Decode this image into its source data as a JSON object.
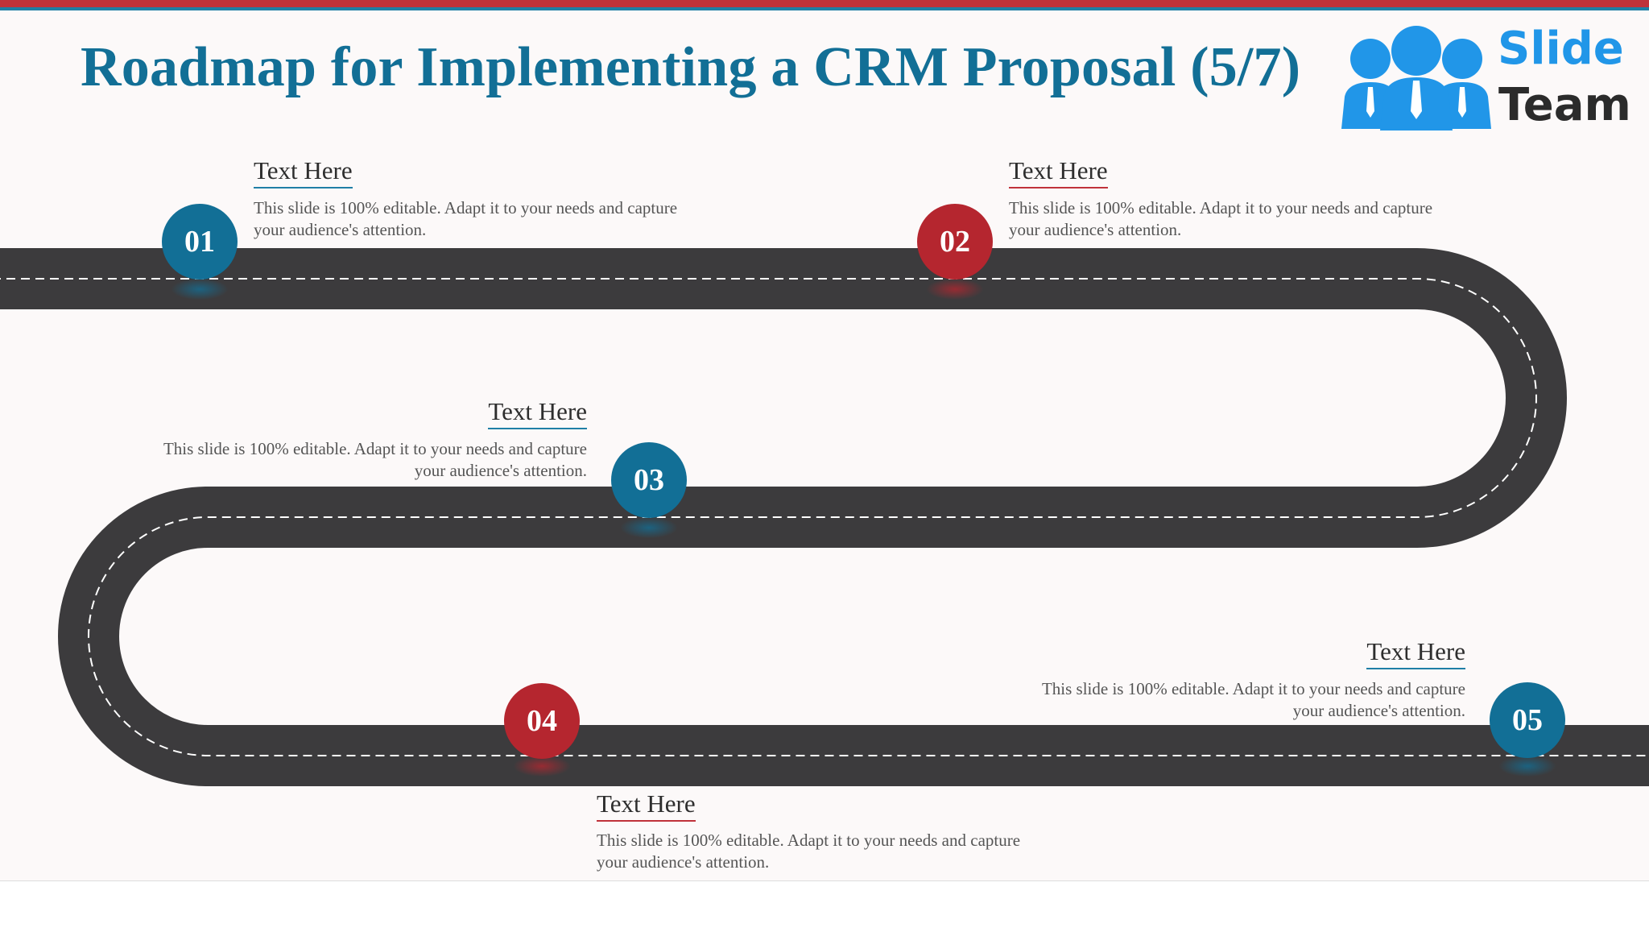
{
  "title": "Roadmap for Implementing a CRM Proposal (5/7)",
  "logo": {
    "line1": "Slide",
    "line2": "Team"
  },
  "colors": {
    "blue": "#126f96",
    "red": "#b5262f",
    "road": "#3c3b3d",
    "title": "#126f96"
  },
  "steps": [
    {
      "number": "01",
      "color": "blue",
      "heading": "Text Here",
      "text": "This slide is 100% editable. Adapt it to your needs and capture your audience's attention."
    },
    {
      "number": "02",
      "color": "red",
      "heading": "Text Here",
      "text": "This slide is 100% editable. Adapt it to your needs and capture your audience's attention."
    },
    {
      "number": "03",
      "color": "blue",
      "heading": "Text Here",
      "text": "This slide is 100% editable. Adapt it to your needs and capture your audience's attention."
    },
    {
      "number": "04",
      "color": "red",
      "heading": "Text Here",
      "text": "This slide is 100% editable. Adapt it to your needs and capture your audience's attention."
    },
    {
      "number": "05",
      "color": "blue",
      "heading": "Text Here",
      "text": "This slide is 100% editable. Adapt it to your needs and capture your audience's attention."
    }
  ]
}
